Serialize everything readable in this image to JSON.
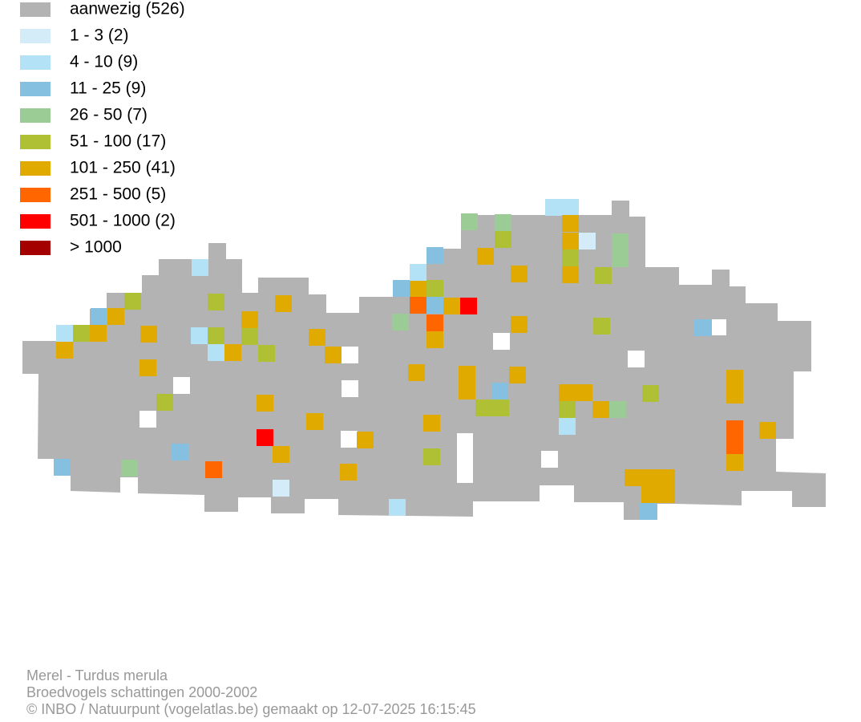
{
  "legend": {
    "items": [
      {
        "label": "aanwezig (526)",
        "color": "#b3b3b3"
      },
      {
        "label": "1 - 3 (2)",
        "color": "#d4ebf8"
      },
      {
        "label": "4 - 10 (9)",
        "color": "#b3e2f7"
      },
      {
        "label": "11 - 25 (9)",
        "color": "#86c0e0"
      },
      {
        "label": "26 - 50 (7)",
        "color": "#9bcc96"
      },
      {
        "label": "51 - 100 (17)",
        "color": "#b0c034"
      },
      {
        "label": "101 - 250 (41)",
        "color": "#e0aa00"
      },
      {
        "label": "251 - 500 (5)",
        "color": "#ff6600"
      },
      {
        "label": "501 - 1000 (2)",
        "color": "#ff0000"
      },
      {
        "label": "> 1000",
        "color": "#a50000"
      }
    ]
  },
  "footer": {
    "lines": [
      "Merel - Turdus merula",
      "Broedvogels schattingen 2000-2002",
      "© INBO / Natuurpunt (vogelatlas.be) gemaakt op 12-07-2025 16:15:45"
    ]
  }
}
